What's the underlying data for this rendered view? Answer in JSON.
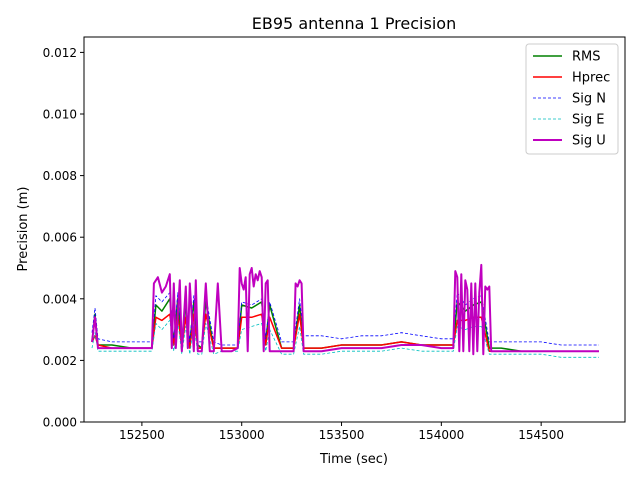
{
  "chart_data": {
    "type": "line",
    "title": "EB95 antenna 1 Precision",
    "xlabel": "Time (sec)",
    "ylabel": "Precision (m)",
    "xlim": [
      152210,
      154920
    ],
    "ylim": [
      0,
      0.0125
    ],
    "xticks": [
      152500,
      153000,
      153500,
      154000,
      154500
    ],
    "xtick_labels": [
      "152500",
      "153000",
      "153500",
      "154000",
      "154500"
    ],
    "yticks": [
      0,
      0.002,
      0.004,
      0.006,
      0.008,
      0.01,
      0.012
    ],
    "ytick_labels": [
      "0.000",
      "0.002",
      "0.004",
      "0.006",
      "0.008",
      "0.010",
      "0.012"
    ],
    "legend_position": "top-right",
    "grid": false,
    "series": [
      {
        "name": "RMS",
        "color": "#008000",
        "style": "solid",
        "width": 1.5,
        "x": [
          152250,
          152265,
          152280,
          152350,
          152450,
          152550,
          152570,
          152600,
          152640,
          152660,
          152680,
          152700,
          152720,
          152740,
          152760,
          152780,
          152800,
          152820,
          152860,
          152900,
          152980,
          153000,
          153050,
          153100,
          153120,
          153140,
          153200,
          153260,
          153290,
          153310,
          153400,
          153500,
          153600,
          153700,
          153800,
          153900,
          154000,
          154060,
          154080,
          154120,
          154160,
          154200,
          154240,
          154300,
          154400,
          154500,
          154600,
          154700,
          154790
        ],
        "y": [
          0.0026,
          0.0035,
          0.0025,
          0.0025,
          0.0024,
          0.0024,
          0.0038,
          0.0036,
          0.004,
          0.0026,
          0.004,
          0.0025,
          0.0038,
          0.0025,
          0.0039,
          0.0025,
          0.0024,
          0.0039,
          0.0024,
          0.0024,
          0.0024,
          0.0038,
          0.0037,
          0.0039,
          0.0026,
          0.0038,
          0.0024,
          0.0024,
          0.0038,
          0.0024,
          0.0024,
          0.0025,
          0.0025,
          0.0025,
          0.0026,
          0.0025,
          0.0025,
          0.0025,
          0.0039,
          0.0036,
          0.0038,
          0.0039,
          0.0024,
          0.0024,
          0.0023,
          0.0023,
          0.0023,
          0.0023,
          0.0023
        ]
      },
      {
        "name": "Hprec",
        "color": "#ff0000",
        "style": "solid",
        "width": 1.5,
        "x": [
          152250,
          152265,
          152280,
          152350,
          152450,
          152550,
          152570,
          152600,
          152640,
          152660,
          152680,
          152700,
          152720,
          152740,
          152760,
          152780,
          152800,
          152820,
          152860,
          152900,
          152980,
          153000,
          153050,
          153100,
          153120,
          153140,
          153200,
          153260,
          153290,
          153310,
          153400,
          153500,
          153600,
          153700,
          153800,
          153900,
          154000,
          154060,
          154080,
          154120,
          154160,
          154200,
          154240,
          154300,
          154400,
          154500,
          154600,
          154700,
          154790
        ],
        "y": [
          0.0026,
          0.0028,
          0.0025,
          0.0024,
          0.0024,
          0.0024,
          0.0034,
          0.0033,
          0.0035,
          0.0025,
          0.0035,
          0.0024,
          0.0034,
          0.0024,
          0.0035,
          0.0024,
          0.0024,
          0.0035,
          0.0024,
          0.0024,
          0.0024,
          0.0034,
          0.0034,
          0.0035,
          0.0025,
          0.0034,
          0.0024,
          0.0024,
          0.0035,
          0.0024,
          0.0024,
          0.0025,
          0.0025,
          0.0025,
          0.0026,
          0.0025,
          0.0025,
          0.0025,
          0.0033,
          0.0033,
          0.0034,
          0.0034,
          0.0023,
          0.0023,
          0.0023,
          0.0023,
          0.0023,
          0.0023,
          0.0023
        ]
      },
      {
        "name": "Sig N",
        "color": "#0000ff",
        "style": "dashed",
        "width": 0.8,
        "x": [
          152250,
          152265,
          152280,
          152350,
          152450,
          152550,
          152570,
          152600,
          152640,
          152660,
          152680,
          152700,
          152720,
          152740,
          152760,
          152780,
          152800,
          152820,
          152860,
          152900,
          152980,
          153000,
          153050,
          153100,
          153120,
          153140,
          153200,
          153260,
          153290,
          153310,
          153400,
          153500,
          153600,
          153700,
          153800,
          153900,
          154000,
          154060,
          154080,
          154120,
          154160,
          154200,
          154240,
          154300,
          154400,
          154500,
          154600,
          154700,
          154790
        ],
        "y": [
          0.0029,
          0.0037,
          0.0027,
          0.0026,
          0.0026,
          0.0026,
          0.0041,
          0.0039,
          0.0042,
          0.0027,
          0.0042,
          0.0026,
          0.004,
          0.0026,
          0.0041,
          0.0026,
          0.0026,
          0.0041,
          0.0026,
          0.0025,
          0.0025,
          0.0039,
          0.0038,
          0.004,
          0.0027,
          0.0039,
          0.0026,
          0.0026,
          0.004,
          0.0028,
          0.0028,
          0.0027,
          0.0028,
          0.0028,
          0.0029,
          0.0028,
          0.0027,
          0.0027,
          0.0042,
          0.0038,
          0.004,
          0.0041,
          0.0026,
          0.0026,
          0.0026,
          0.0026,
          0.0025,
          0.0025,
          0.0025
        ]
      },
      {
        "name": "Sig E",
        "color": "#00bfbf",
        "style": "dashed",
        "width": 0.8,
        "x": [
          152250,
          152265,
          152280,
          152350,
          152450,
          152550,
          152570,
          152600,
          152640,
          152660,
          152680,
          152700,
          152720,
          152740,
          152760,
          152780,
          152800,
          152820,
          152860,
          152900,
          152980,
          153000,
          153050,
          153100,
          153120,
          153140,
          153200,
          153260,
          153290,
          153310,
          153400,
          153500,
          153600,
          153700,
          153800,
          153900,
          154000,
          154060,
          154080,
          154120,
          154160,
          154200,
          154240,
          154300,
          154400,
          154500,
          154600,
          154700,
          154790
        ],
        "y": [
          0.0024,
          0.0029,
          0.0023,
          0.0023,
          0.0023,
          0.0023,
          0.0032,
          0.003,
          0.0033,
          0.0023,
          0.0033,
          0.0022,
          0.0031,
          0.0022,
          0.0032,
          0.0022,
          0.0022,
          0.0032,
          0.0022,
          0.0023,
          0.0023,
          0.003,
          0.0031,
          0.0032,
          0.0023,
          0.003,
          0.0022,
          0.0022,
          0.0031,
          0.0022,
          0.0022,
          0.0023,
          0.0023,
          0.0023,
          0.0024,
          0.0023,
          0.0023,
          0.0023,
          0.0031,
          0.003,
          0.0031,
          0.0031,
          0.0022,
          0.0022,
          0.0022,
          0.0022,
          0.0021,
          0.0021,
          0.0021
        ]
      },
      {
        "name": "Sig U",
        "color": "#bf00bf",
        "style": "solid",
        "width": 2,
        "x": [
          152250,
          152265,
          152280,
          152350,
          152450,
          152550,
          152560,
          152580,
          152600,
          152620,
          152640,
          152650,
          152660,
          152670,
          152690,
          152700,
          152720,
          152730,
          152740,
          152760,
          152770,
          152780,
          152800,
          152820,
          152840,
          152860,
          152880,
          152900,
          152950,
          152980,
          152990,
          153000,
          153010,
          153020,
          153030,
          153040,
          153050,
          153060,
          153070,
          153080,
          153090,
          153100,
          153110,
          153120,
          153130,
          153140,
          153200,
          153260,
          153270,
          153280,
          153290,
          153300,
          153310,
          153400,
          153500,
          153600,
          153700,
          153800,
          153900,
          154000,
          154060,
          154070,
          154080,
          154090,
          154100,
          154110,
          154120,
          154130,
          154140,
          154150,
          154160,
          154170,
          154180,
          154190,
          154200,
          154210,
          154220,
          154230,
          154240,
          154250,
          154300,
          154400,
          154500,
          154600,
          154700,
          154790
        ],
        "y": [
          0.0026,
          0.0034,
          0.0024,
          0.0024,
          0.0024,
          0.0024,
          0.0045,
          0.0047,
          0.0042,
          0.0044,
          0.0048,
          0.0024,
          0.0045,
          0.0024,
          0.0046,
          0.0023,
          0.0044,
          0.0024,
          0.0045,
          0.0023,
          0.0046,
          0.0023,
          0.0023,
          0.0045,
          0.0023,
          0.0023,
          0.0045,
          0.0023,
          0.0023,
          0.0024,
          0.005,
          0.0045,
          0.0043,
          0.0047,
          0.0023,
          0.0048,
          0.005,
          0.0044,
          0.0048,
          0.0046,
          0.0049,
          0.0047,
          0.0023,
          0.0045,
          0.0046,
          0.0023,
          0.0023,
          0.0023,
          0.0045,
          0.0044,
          0.0046,
          0.0045,
          0.0023,
          0.0023,
          0.0024,
          0.0024,
          0.0024,
          0.0025,
          0.0025,
          0.0024,
          0.0024,
          0.0049,
          0.0047,
          0.0023,
          0.0048,
          0.0023,
          0.0046,
          0.0043,
          0.0023,
          0.0045,
          0.0022,
          0.0045,
          0.0023,
          0.0042,
          0.0051,
          0.0022,
          0.0044,
          0.0043,
          0.0044,
          0.0023,
          0.0023,
          0.0023,
          0.0023,
          0.0023,
          0.0023,
          0.0023
        ]
      }
    ]
  }
}
